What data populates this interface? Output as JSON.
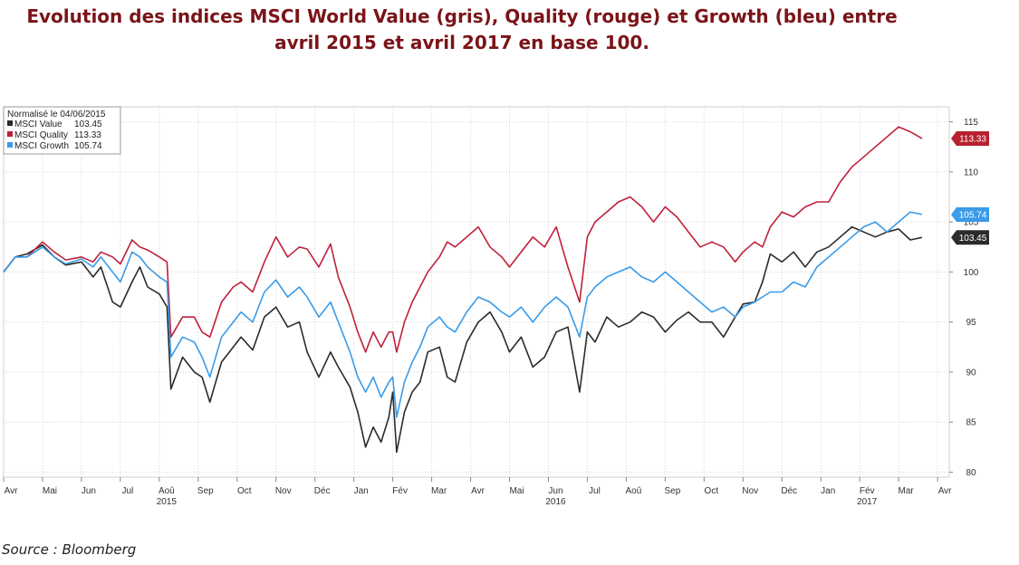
{
  "header": {
    "title_line1": "Evolution des indices MSCI World Value (gris), Quality (rouge) et Growth (bleu) entre",
    "title_line2": "avril 2015 et avril 2017 en base 100."
  },
  "footer": {
    "source": "Source : Bloomberg"
  },
  "chart_data": {
    "type": "line",
    "legend_title": "Normalisé le 04/06/2015",
    "legend_position": "top-left",
    "grid": true,
    "ylim": [
      79.5,
      116.5
    ],
    "y_ticks": [
      80,
      85,
      90,
      95,
      100,
      105,
      110,
      115
    ],
    "x_range": [
      0,
      24.3
    ],
    "x_ticks": [
      {
        "label": "Avr",
        "x": 0,
        "year": "2015"
      },
      {
        "label": "Mai",
        "x": 1
      },
      {
        "label": "Jun",
        "x": 2
      },
      {
        "label": "Jul",
        "x": 3
      },
      {
        "label": "Aoû",
        "x": 4,
        "year": "2015"
      },
      {
        "label": "Sep",
        "x": 5
      },
      {
        "label": "Oct",
        "x": 6
      },
      {
        "label": "Nov",
        "x": 7
      },
      {
        "label": "Déc",
        "x": 8
      },
      {
        "label": "Jan",
        "x": 9
      },
      {
        "label": "Fév",
        "x": 10
      },
      {
        "label": "Mar",
        "x": 11
      },
      {
        "label": "Avr",
        "x": 12
      },
      {
        "label": "Mai",
        "x": 13
      },
      {
        "label": "Jun",
        "x": 14,
        "year": "2016"
      },
      {
        "label": "Jul",
        "x": 15
      },
      {
        "label": "Aoû",
        "x": 16
      },
      {
        "label": "Sep",
        "x": 17
      },
      {
        "label": "Oct",
        "x": 18
      },
      {
        "label": "Nov",
        "x": 19
      },
      {
        "label": "Déc",
        "x": 20
      },
      {
        "label": "Jan",
        "x": 21
      },
      {
        "label": "Fév",
        "x": 22,
        "year": "2017"
      },
      {
        "label": "Mar",
        "x": 23
      },
      {
        "label": "Avr",
        "x": 24
      }
    ],
    "series": [
      {
        "name": "MSCI Value",
        "last": "103.45",
        "color": "#2b2b2b",
        "tag_color": "#2b2b2b",
        "points": [
          [
            0,
            100
          ],
          [
            0.3,
            101.5
          ],
          [
            0.6,
            101.8
          ],
          [
            1.0,
            102.7
          ],
          [
            1.3,
            101.5
          ],
          [
            1.6,
            100.7
          ],
          [
            2.0,
            101.0
          ],
          [
            2.3,
            99.5
          ],
          [
            2.5,
            100.5
          ],
          [
            2.8,
            97.0
          ],
          [
            3.0,
            96.5
          ],
          [
            3.3,
            99.0
          ],
          [
            3.5,
            100.5
          ],
          [
            3.7,
            98.5
          ],
          [
            4.0,
            97.8
          ],
          [
            4.2,
            96.5
          ],
          [
            4.3,
            88.3
          ],
          [
            4.6,
            91.5
          ],
          [
            4.9,
            90.0
          ],
          [
            5.1,
            89.5
          ],
          [
            5.3,
            87.0
          ],
          [
            5.6,
            91.0
          ],
          [
            5.9,
            92.5
          ],
          [
            6.1,
            93.5
          ],
          [
            6.4,
            92.2
          ],
          [
            6.7,
            95.5
          ],
          [
            7.0,
            96.5
          ],
          [
            7.3,
            94.5
          ],
          [
            7.6,
            95.0
          ],
          [
            7.8,
            92.0
          ],
          [
            8.1,
            89.5
          ],
          [
            8.4,
            92.0
          ],
          [
            8.6,
            90.5
          ],
          [
            8.9,
            88.5
          ],
          [
            9.1,
            86.0
          ],
          [
            9.3,
            82.5
          ],
          [
            9.5,
            84.5
          ],
          [
            9.7,
            83.0
          ],
          [
            9.9,
            85.5
          ],
          [
            10.0,
            88.0
          ],
          [
            10.1,
            82.0
          ],
          [
            10.3,
            86.0
          ],
          [
            10.5,
            88.0
          ],
          [
            10.7,
            89.0
          ],
          [
            10.9,
            92.0
          ],
          [
            11.2,
            92.5
          ],
          [
            11.4,
            89.5
          ],
          [
            11.6,
            89.0
          ],
          [
            11.9,
            93.0
          ],
          [
            12.2,
            95.0
          ],
          [
            12.5,
            96.0
          ],
          [
            12.8,
            94.0
          ],
          [
            13.0,
            92.0
          ],
          [
            13.3,
            93.5
          ],
          [
            13.6,
            90.5
          ],
          [
            13.9,
            91.5
          ],
          [
            14.2,
            94.0
          ],
          [
            14.5,
            94.5
          ],
          [
            14.8,
            88.0
          ],
          [
            15.0,
            94.0
          ],
          [
            15.2,
            93.0
          ],
          [
            15.5,
            95.5
          ],
          [
            15.8,
            94.5
          ],
          [
            16.1,
            95.0
          ],
          [
            16.4,
            96.0
          ],
          [
            16.7,
            95.5
          ],
          [
            17.0,
            94.0
          ],
          [
            17.3,
            95.2
          ],
          [
            17.6,
            96.0
          ],
          [
            17.9,
            95.0
          ],
          [
            18.2,
            95.0
          ],
          [
            18.5,
            93.5
          ],
          [
            18.8,
            95.5
          ],
          [
            19.0,
            96.8
          ],
          [
            19.3,
            97.0
          ],
          [
            19.5,
            99.0
          ],
          [
            19.7,
            101.8
          ],
          [
            20.0,
            101.0
          ],
          [
            20.3,
            102.0
          ],
          [
            20.6,
            100.5
          ],
          [
            20.9,
            102.0
          ],
          [
            21.2,
            102.5
          ],
          [
            21.5,
            103.5
          ],
          [
            21.8,
            104.5
          ],
          [
            22.1,
            104.0
          ],
          [
            22.4,
            103.5
          ],
          [
            22.7,
            104.0
          ],
          [
            23.0,
            104.3
          ],
          [
            23.3,
            103.2
          ],
          [
            23.6,
            103.45
          ]
        ]
      },
      {
        "name": "MSCI Quality",
        "last": "113.33",
        "color": "#c0203a",
        "tag_color": "#b8202f",
        "points": [
          [
            0,
            100
          ],
          [
            0.3,
            101.5
          ],
          [
            0.6,
            101.5
          ],
          [
            1.0,
            103.0
          ],
          [
            1.3,
            102.0
          ],
          [
            1.6,
            101.2
          ],
          [
            2.0,
            101.5
          ],
          [
            2.3,
            101.0
          ],
          [
            2.5,
            102.0
          ],
          [
            2.8,
            101.5
          ],
          [
            3.0,
            100.8
          ],
          [
            3.3,
            103.2
          ],
          [
            3.5,
            102.5
          ],
          [
            3.7,
            102.2
          ],
          [
            4.0,
            101.5
          ],
          [
            4.2,
            101.0
          ],
          [
            4.3,
            93.5
          ],
          [
            4.6,
            95.5
          ],
          [
            4.9,
            95.5
          ],
          [
            5.1,
            94.0
          ],
          [
            5.3,
            93.5
          ],
          [
            5.6,
            97.0
          ],
          [
            5.9,
            98.5
          ],
          [
            6.1,
            99.0
          ],
          [
            6.4,
            98.0
          ],
          [
            6.7,
            101.0
          ],
          [
            7.0,
            103.5
          ],
          [
            7.3,
            101.5
          ],
          [
            7.6,
            102.5
          ],
          [
            7.8,
            102.3
          ],
          [
            8.1,
            100.5
          ],
          [
            8.4,
            102.8
          ],
          [
            8.6,
            99.5
          ],
          [
            8.9,
            96.5
          ],
          [
            9.1,
            94.0
          ],
          [
            9.3,
            92.0
          ],
          [
            9.5,
            94.0
          ],
          [
            9.7,
            92.5
          ],
          [
            9.9,
            94.0
          ],
          [
            10.0,
            94.0
          ],
          [
            10.1,
            92.0
          ],
          [
            10.3,
            95.0
          ],
          [
            10.5,
            97.0
          ],
          [
            10.7,
            98.5
          ],
          [
            10.9,
            100.0
          ],
          [
            11.2,
            101.5
          ],
          [
            11.4,
            103.0
          ],
          [
            11.6,
            102.5
          ],
          [
            11.9,
            103.5
          ],
          [
            12.2,
            104.5
          ],
          [
            12.5,
            102.5
          ],
          [
            12.8,
            101.5
          ],
          [
            13.0,
            100.5
          ],
          [
            13.3,
            102.0
          ],
          [
            13.6,
            103.5
          ],
          [
            13.9,
            102.5
          ],
          [
            14.2,
            104.5
          ],
          [
            14.5,
            100.5
          ],
          [
            14.8,
            97.0
          ],
          [
            15.0,
            103.5
          ],
          [
            15.2,
            105.0
          ],
          [
            15.5,
            106.0
          ],
          [
            15.8,
            107.0
          ],
          [
            16.1,
            107.5
          ],
          [
            16.4,
            106.5
          ],
          [
            16.7,
            105.0
          ],
          [
            17.0,
            106.5
          ],
          [
            17.3,
            105.5
          ],
          [
            17.6,
            104.0
          ],
          [
            17.9,
            102.5
          ],
          [
            18.2,
            103.0
          ],
          [
            18.5,
            102.5
          ],
          [
            18.8,
            101.0
          ],
          [
            19.0,
            102.0
          ],
          [
            19.3,
            103.0
          ],
          [
            19.5,
            102.5
          ],
          [
            19.7,
            104.5
          ],
          [
            20.0,
            106.0
          ],
          [
            20.3,
            105.5
          ],
          [
            20.6,
            106.5
          ],
          [
            20.9,
            107.0
          ],
          [
            21.2,
            107.0
          ],
          [
            21.5,
            109.0
          ],
          [
            21.8,
            110.5
          ],
          [
            22.1,
            111.5
          ],
          [
            22.4,
            112.5
          ],
          [
            22.7,
            113.5
          ],
          [
            23.0,
            114.5
          ],
          [
            23.3,
            114.0
          ],
          [
            23.6,
            113.33
          ]
        ]
      },
      {
        "name": "MSCI Growth",
        "last": "105.74",
        "color": "#3a9be8",
        "tag_color": "#3a9be8",
        "points": [
          [
            0,
            100
          ],
          [
            0.3,
            101.5
          ],
          [
            0.6,
            101.5
          ],
          [
            1.0,
            102.5
          ],
          [
            1.3,
            101.5
          ],
          [
            1.6,
            100.8
          ],
          [
            2.0,
            101.3
          ],
          [
            2.3,
            100.5
          ],
          [
            2.5,
            101.5
          ],
          [
            2.8,
            100.0
          ],
          [
            3.0,
            99.0
          ],
          [
            3.3,
            102.0
          ],
          [
            3.5,
            101.5
          ],
          [
            3.7,
            100.5
          ],
          [
            4.0,
            99.5
          ],
          [
            4.2,
            99.0
          ],
          [
            4.3,
            91.5
          ],
          [
            4.6,
            93.5
          ],
          [
            4.9,
            93.0
          ],
          [
            5.1,
            91.5
          ],
          [
            5.3,
            89.5
          ],
          [
            5.6,
            93.5
          ],
          [
            5.9,
            95.0
          ],
          [
            6.1,
            96.0
          ],
          [
            6.4,
            95.0
          ],
          [
            6.7,
            98.0
          ],
          [
            7.0,
            99.2
          ],
          [
            7.3,
            97.5
          ],
          [
            7.6,
            98.5
          ],
          [
            7.8,
            97.5
          ],
          [
            8.1,
            95.5
          ],
          [
            8.4,
            97.0
          ],
          [
            8.6,
            95.0
          ],
          [
            8.9,
            92.0
          ],
          [
            9.1,
            89.5
          ],
          [
            9.3,
            88.0
          ],
          [
            9.5,
            89.5
          ],
          [
            9.7,
            87.5
          ],
          [
            9.9,
            89.0
          ],
          [
            10.0,
            89.5
          ],
          [
            10.1,
            85.5
          ],
          [
            10.3,
            89.0
          ],
          [
            10.5,
            91.0
          ],
          [
            10.7,
            92.5
          ],
          [
            10.9,
            94.5
          ],
          [
            11.2,
            95.5
          ],
          [
            11.4,
            94.5
          ],
          [
            11.6,
            94.0
          ],
          [
            11.9,
            96.0
          ],
          [
            12.2,
            97.5
          ],
          [
            12.5,
            97.0
          ],
          [
            12.8,
            96.0
          ],
          [
            13.0,
            95.5
          ],
          [
            13.3,
            96.5
          ],
          [
            13.6,
            95.0
          ],
          [
            13.9,
            96.5
          ],
          [
            14.2,
            97.5
          ],
          [
            14.5,
            96.5
          ],
          [
            14.8,
            93.5
          ],
          [
            15.0,
            97.5
          ],
          [
            15.2,
            98.5
          ],
          [
            15.5,
            99.5
          ],
          [
            15.8,
            100.0
          ],
          [
            16.1,
            100.5
          ],
          [
            16.4,
            99.5
          ],
          [
            16.7,
            99.0
          ],
          [
            17.0,
            100.0
          ],
          [
            17.3,
            99.0
          ],
          [
            17.6,
            98.0
          ],
          [
            17.9,
            97.0
          ],
          [
            18.2,
            96.0
          ],
          [
            18.5,
            96.5
          ],
          [
            18.8,
            95.5
          ],
          [
            19.0,
            96.5
          ],
          [
            19.3,
            97.0
          ],
          [
            19.5,
            97.5
          ],
          [
            19.7,
            98.0
          ],
          [
            20.0,
            98.0
          ],
          [
            20.3,
            99.0
          ],
          [
            20.6,
            98.5
          ],
          [
            20.9,
            100.5
          ],
          [
            21.2,
            101.5
          ],
          [
            21.5,
            102.5
          ],
          [
            21.8,
            103.5
          ],
          [
            22.1,
            104.5
          ],
          [
            22.4,
            105.0
          ],
          [
            22.7,
            104.0
          ],
          [
            23.0,
            105.0
          ],
          [
            23.3,
            106.0
          ],
          [
            23.6,
            105.74
          ]
        ]
      }
    ]
  }
}
